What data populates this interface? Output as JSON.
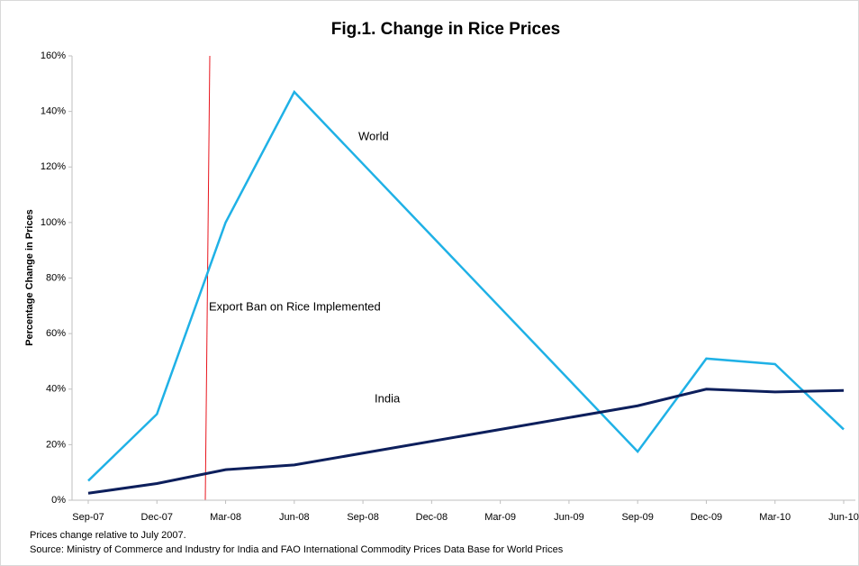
{
  "chart_data": {
    "type": "line",
    "title": "Fig.1. Change in Rice Prices",
    "y_label": "Percentage Change in Prices",
    "categories": [
      "Sep-07",
      "Dec-07",
      "Mar-08",
      "Jun-08",
      "Sep-08",
      "Dec-08",
      "Mar-09",
      "Jun-09",
      "Sep-09",
      "Dec-09",
      "Mar-10",
      "Jun-10"
    ],
    "series": [
      {
        "name": "World",
        "color": "#1fb1e6",
        "x": [
          "Sep-07",
          "Dec-07",
          "Mar-08",
          "Jun-08",
          "Sep-09",
          "Dec-09",
          "Mar-10",
          "Jun-10"
        ],
        "values": [
          7,
          31,
          100,
          147,
          17.5,
          51,
          49,
          25.5
        ]
      },
      {
        "name": "India",
        "color": "#0d1f5c",
        "x": [
          "Sep-07",
          "Dec-07",
          "Mar-08",
          "Jun-08",
          "Sep-09",
          "Dec-09",
          "Mar-10",
          "Jun-10"
        ],
        "values": [
          2.5,
          6,
          11,
          12.7,
          34,
          40,
          39,
          39.5
        ]
      }
    ],
    "ylim": [
      0,
      160
    ],
    "yticks": [
      {
        "value": 0,
        "label": "0%"
      },
      {
        "value": 20,
        "label": "20%"
      },
      {
        "value": 40,
        "label": "40%"
      },
      {
        "value": 60,
        "label": "60%"
      },
      {
        "value": 80,
        "label": "80%"
      },
      {
        "value": 100,
        "label": "100%"
      },
      {
        "value": 120,
        "label": "120%"
      },
      {
        "value": 140,
        "label": "140%"
      },
      {
        "value": 160,
        "label": "160%"
      }
    ],
    "annotation": "Export Ban on Rice Implemented",
    "notes": [
      "Prices change relative to July 2007.",
      "Source: Ministry of Commerce and Industry for India and FAO International Commodity Prices Data Base for World Prices"
    ]
  }
}
